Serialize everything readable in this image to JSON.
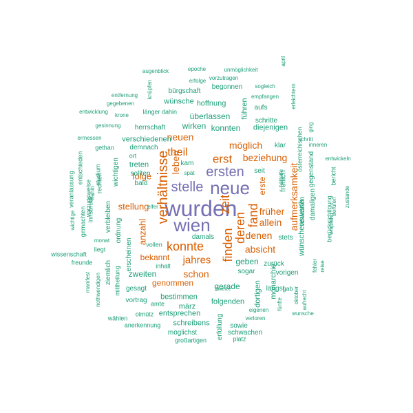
{
  "colors": {
    "top": "#7570b3",
    "mid": "#d95f02",
    "low": "#1b9e77"
  },
  "words": [
    {
      "t": "wurden",
      "c": "top"
    },
    {
      "t": "wien",
      "c": "top"
    },
    {
      "t": "neue",
      "c": "top"
    },
    {
      "t": "stelle",
      "c": "top"
    },
    {
      "t": "ersten",
      "c": "top"
    },
    {
      "t": "verhältnisse",
      "c": "mid"
    },
    {
      "t": "konnte",
      "c": "mid"
    },
    {
      "t": "zeit",
      "c": "mid"
    },
    {
      "t": "finden",
      "c": "mid"
    },
    {
      "t": "deren",
      "c": "mid"
    },
    {
      "t": "fand",
      "c": "mid"
    },
    {
      "t": "erst",
      "c": "mid"
    },
    {
      "t": "theil",
      "c": "mid"
    },
    {
      "t": "leben",
      "c": "mid"
    },
    {
      "t": "jahres",
      "c": "mid"
    },
    {
      "t": "schon",
      "c": "mid"
    },
    {
      "t": "aufmerksamkeit",
      "c": "mid"
    },
    {
      "t": "beziehung",
      "c": "mid"
    },
    {
      "t": "möglich",
      "c": "mid"
    },
    {
      "t": "neuen",
      "c": "mid"
    },
    {
      "t": "denen",
      "c": "mid"
    },
    {
      "t": "absicht",
      "c": "mid"
    },
    {
      "t": "allein",
      "c": "mid"
    },
    {
      "t": "früher",
      "c": "mid"
    },
    {
      "t": "folge",
      "c": "mid"
    },
    {
      "t": "anzahl",
      "c": "mid"
    },
    {
      "t": "stellung",
      "c": "mid"
    },
    {
      "t": "bekannt",
      "c": "mid"
    },
    {
      "t": "genommen",
      "c": "mid"
    },
    {
      "t": "erste",
      "c": "mid"
    },
    {
      "t": "geben",
      "c": "low"
    },
    {
      "t": "gerade",
      "c": "low"
    },
    {
      "t": "zweiten",
      "c": "low"
    },
    {
      "t": "bestimmen",
      "c": "low"
    },
    {
      "t": "märz",
      "c": "low"
    },
    {
      "t": "folgenden",
      "c": "low"
    },
    {
      "t": "entsprechen",
      "c": "low"
    },
    {
      "t": "schreibens",
      "c": "low"
    },
    {
      "t": "möglichst",
      "c": "low"
    },
    {
      "t": "sowie",
      "c": "low"
    },
    {
      "t": "schwachen",
      "c": "low"
    },
    {
      "t": "platz",
      "c": "low"
    },
    {
      "t": "großartigen",
      "c": "low"
    },
    {
      "t": "erfüllung",
      "c": "low"
    },
    {
      "t": "anerkennung",
      "c": "low"
    },
    {
      "t": "wählen",
      "c": "low"
    },
    {
      "t": "olmütz",
      "c": "low"
    },
    {
      "t": "amte",
      "c": "low"
    },
    {
      "t": "vortrag",
      "c": "low"
    },
    {
      "t": "gesagt",
      "c": "low"
    },
    {
      "t": "inhalt",
      "c": "low"
    },
    {
      "t": "vollen",
      "c": "low"
    },
    {
      "t": "damals",
      "c": "low"
    },
    {
      "t": "sogar",
      "c": "low"
    },
    {
      "t": "zurück",
      "c": "low"
    },
    {
      "t": "vorigen",
      "c": "low"
    },
    {
      "t": "längst",
      "c": "low"
    },
    {
      "t": "stets",
      "c": "low"
    },
    {
      "t": "dortigen",
      "c": "low"
    },
    {
      "t": "monarchie",
      "c": "low"
    },
    {
      "t": "verloren",
      "c": "low"
    },
    {
      "t": "zweite",
      "c": "low"
    },
    {
      "t": "wünschenswerth",
      "c": "low"
    },
    {
      "t": "verlassen",
      "c": "low"
    },
    {
      "t": "damaligen",
      "c": "low"
    },
    {
      "t": "berücksichtigung",
      "c": "low"
    },
    {
      "t": "freilich",
      "c": "low"
    },
    {
      "t": "gegenstand",
      "c": "low"
    },
    {
      "t": "bericht",
      "c": "low"
    },
    {
      "t": "zustande",
      "c": "low"
    },
    {
      "t": "berufen",
      "c": "low"
    },
    {
      "t": "empfang",
      "c": "low"
    },
    {
      "t": "entwickeln",
      "c": "low"
    },
    {
      "t": "inneren",
      "c": "low"
    },
    {
      "t": "schritt",
      "c": "low"
    },
    {
      "t": "ging",
      "c": "low"
    },
    {
      "t": "österreichischen",
      "c": "low"
    },
    {
      "t": "hätteife",
      "c": "low"
    },
    {
      "t": "seit",
      "c": "low"
    },
    {
      "t": "klar",
      "c": "low"
    },
    {
      "t": "diejenigen",
      "c": "low"
    },
    {
      "t": "konnten",
      "c": "low"
    },
    {
      "t": "wirken",
      "c": "low"
    },
    {
      "t": "überlassen",
      "c": "low"
    },
    {
      "t": "führen",
      "c": "low"
    },
    {
      "t": "schritte",
      "c": "low"
    },
    {
      "t": "aufs",
      "c": "low"
    },
    {
      "t": "hoffnung",
      "c": "low"
    },
    {
      "t": "wünsche",
      "c": "low"
    },
    {
      "t": "bürgschaft",
      "c": "low"
    },
    {
      "t": "begonnen",
      "c": "low"
    },
    {
      "t": "sogleich",
      "c": "low"
    },
    {
      "t": "empfangen",
      "c": "low"
    },
    {
      "t": "erleichtern",
      "c": "low"
    },
    {
      "t": "april",
      "c": "low"
    },
    {
      "t": "vorzutragen",
      "c": "low"
    },
    {
      "t": "erfolge",
      "c": "low"
    },
    {
      "t": "epoche",
      "c": "low"
    },
    {
      "t": "unmöglichkeit",
      "c": "low"
    },
    {
      "t": "augenblick",
      "c": "low"
    },
    {
      "t": "knüpfen",
      "c": "low"
    },
    {
      "t": "entfernung",
      "c": "low"
    },
    {
      "t": "gegebenen",
      "c": "low"
    },
    {
      "t": "entwicklung",
      "c": "low"
    },
    {
      "t": "krone",
      "c": "low"
    },
    {
      "t": "länger",
      "c": "low"
    },
    {
      "t": "dahin",
      "c": "low"
    },
    {
      "t": "gesinnung",
      "c": "low"
    },
    {
      "t": "herrschaft",
      "c": "low"
    },
    {
      "t": "ermessen",
      "c": "low"
    },
    {
      "t": "gethan",
      "c": "low"
    },
    {
      "t": "demnach",
      "c": "low"
    },
    {
      "t": "verschiedenen",
      "c": "low"
    },
    {
      "t": "ort",
      "c": "low"
    },
    {
      "t": "treten",
      "c": "low"
    },
    {
      "t": "sollten",
      "c": "low"
    },
    {
      "t": "kam",
      "c": "low"
    },
    {
      "t": "spät",
      "c": "low"
    },
    {
      "t": "bald",
      "c": "low"
    },
    {
      "t": "elfer",
      "c": "low"
    },
    {
      "t": "erscheinen",
      "c": "low"
    },
    {
      "t": "ordnung",
      "c": "low"
    },
    {
      "t": "liegt",
      "c": "low"
    },
    {
      "t": "monat",
      "c": "low"
    },
    {
      "t": "mittheilung",
      "c": "low"
    },
    {
      "t": "ziemlich",
      "c": "low"
    },
    {
      "t": "verbleiben",
      "c": "low"
    },
    {
      "t": "wichtigen",
      "c": "low"
    },
    {
      "t": "studium",
      "c": "low"
    },
    {
      "t": "rechten",
      "c": "low"
    },
    {
      "t": "innsbruck",
      "c": "low"
    },
    {
      "t": "vorzugsweise",
      "c": "low"
    },
    {
      "t": "nahm",
      "c": "low"
    },
    {
      "t": "gemachten",
      "c": "low"
    },
    {
      "t": "entschieden",
      "c": "low"
    },
    {
      "t": "veranlassung",
      "c": "low"
    },
    {
      "t": "wichtige",
      "c": "low"
    },
    {
      "t": "wissenschaft",
      "c": "low"
    },
    {
      "t": "freunde",
      "c": "low"
    },
    {
      "t": "manifest",
      "c": "low"
    },
    {
      "t": "nothwendigen",
      "c": "low"
    },
    {
      "t": "fehler",
      "c": "low"
    },
    {
      "t": "reise",
      "c": "low"
    },
    {
      "t": "gab",
      "c": "low"
    },
    {
      "t": "oktober",
      "c": "low"
    },
    {
      "t": "aufrecht",
      "c": "low"
    },
    {
      "t": "wunsche",
      "c": "low"
    },
    {
      "t": "fünfte",
      "c": "low"
    },
    {
      "t": "eigenen",
      "c": "low"
    }
  ]
}
